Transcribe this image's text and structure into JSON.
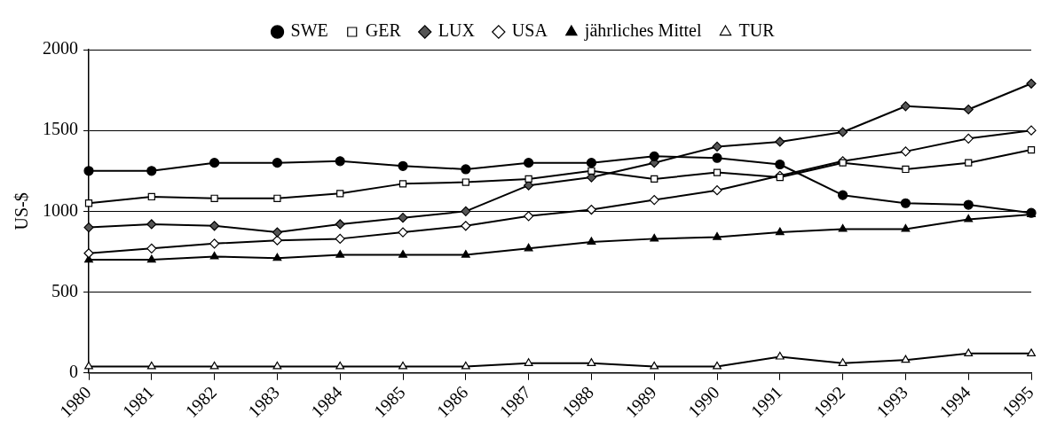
{
  "chart_data": {
    "type": "line",
    "ylabel": "US-$",
    "categories": [
      "1980",
      "1981",
      "1982",
      "1983",
      "1984",
      "1985",
      "1986",
      "1987",
      "1988",
      "1989",
      "1990",
      "1991",
      "1992",
      "1993",
      "1994",
      "1995"
    ],
    "series": [
      {
        "name": "SWE",
        "color": "#000000",
        "marker": "circle",
        "values": [
          1250,
          1250,
          1300,
          1300,
          1310,
          1280,
          1260,
          1300,
          1300,
          1340,
          1330,
          1290,
          1100,
          1050,
          1040,
          990
        ]
      },
      {
        "name": "GER",
        "color": "#ffffff",
        "marker": "square",
        "values": [
          1050,
          1090,
          1080,
          1080,
          1110,
          1170,
          1180,
          1200,
          1250,
          1200,
          1240,
          1210,
          1300,
          1260,
          1300,
          1380
        ]
      },
      {
        "name": "LUX",
        "color": "#555555",
        "marker": "diamond",
        "values": [
          900,
          920,
          910,
          870,
          920,
          960,
          1000,
          1160,
          1210,
          1300,
          1400,
          1430,
          1490,
          1650,
          1630,
          1790
        ]
      },
      {
        "name": "USA",
        "color": "#ffffff",
        "marker": "diamond",
        "values": [
          740,
          770,
          800,
          820,
          830,
          870,
          910,
          970,
          1010,
          1070,
          1130,
          1220,
          1310,
          1370,
          1450,
          1500
        ]
      },
      {
        "name": "jährliches Mittel",
        "color": "#000000",
        "marker": "triangle",
        "values": [
          700,
          700,
          720,
          710,
          730,
          730,
          730,
          770,
          810,
          830,
          840,
          870,
          890,
          890,
          950,
          980
        ]
      },
      {
        "name": "TUR",
        "color": "#ffffff",
        "marker": "triangle",
        "values": [
          40,
          40,
          40,
          40,
          40,
          40,
          40,
          60,
          60,
          40,
          40,
          100,
          60,
          80,
          120,
          120
        ]
      }
    ],
    "ylim": [
      0,
      2000
    ],
    "yticks": [
      0,
      500,
      1000,
      1500,
      2000
    ],
    "grid": "y",
    "legend": "top",
    "line_style": "solid"
  }
}
